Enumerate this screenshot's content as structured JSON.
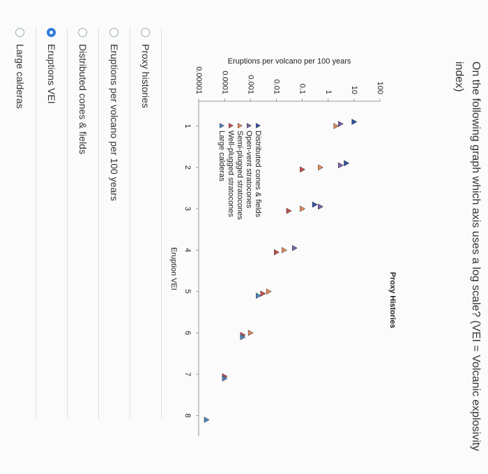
{
  "question": "On the following graph which axis uses a log scale? (VEI = Volcanic explosivity index)",
  "chart_data": {
    "type": "scatter",
    "title": "Proxy Histories",
    "x_label": "Eruption VEI",
    "y_label": "Eruptions per volcano per 100 years",
    "ylog": true,
    "ylim": [
      1e-05,
      100
    ],
    "yticks": [
      100,
      10,
      1,
      0.1,
      0.01,
      0.001,
      0.0001,
      1e-05
    ],
    "xlim": [
      0.4,
      8.5
    ],
    "xticks": [
      1,
      2,
      3,
      4,
      5,
      6,
      7,
      8
    ],
    "series": [
      {
        "name": "Distributed cones & fields",
        "color": "#2f4f9e",
        "x": [
          1,
          2,
          3
        ],
        "values": [
          10,
          5,
          0.3
        ]
      },
      {
        "name": "Open-vent stratocones",
        "color": "#7a5fa8",
        "x": [
          1,
          2,
          3,
          4
        ],
        "values": [
          3,
          3,
          0.5,
          0.05
        ]
      },
      {
        "name": "Semi-plugged stratocones",
        "color": "#e08a5a",
        "x": [
          1,
          2,
          3,
          4,
          5,
          6
        ],
        "values": [
          2,
          0.5,
          0.1,
          0.02,
          0.005,
          0.001
        ]
      },
      {
        "name": "Well-plugged stratocones",
        "color": "#c0504d",
        "x": [
          2,
          3,
          4,
          5,
          6,
          7
        ],
        "values": [
          0.1,
          0.03,
          0.01,
          0.003,
          0.0005,
          0.0001
        ]
      },
      {
        "name": "Large calderas",
        "color": "#4f81bd",
        "x": [
          5,
          6,
          7,
          8
        ],
        "values": [
          0.002,
          0.0005,
          0.0001,
          2e-05
        ]
      }
    ]
  },
  "options": [
    "Proxy histories",
    "Eruptions per volcano per 100 years",
    "Distributed cones & fields",
    "Eruptions VEI",
    "Large calderas"
  ],
  "selected": 3
}
